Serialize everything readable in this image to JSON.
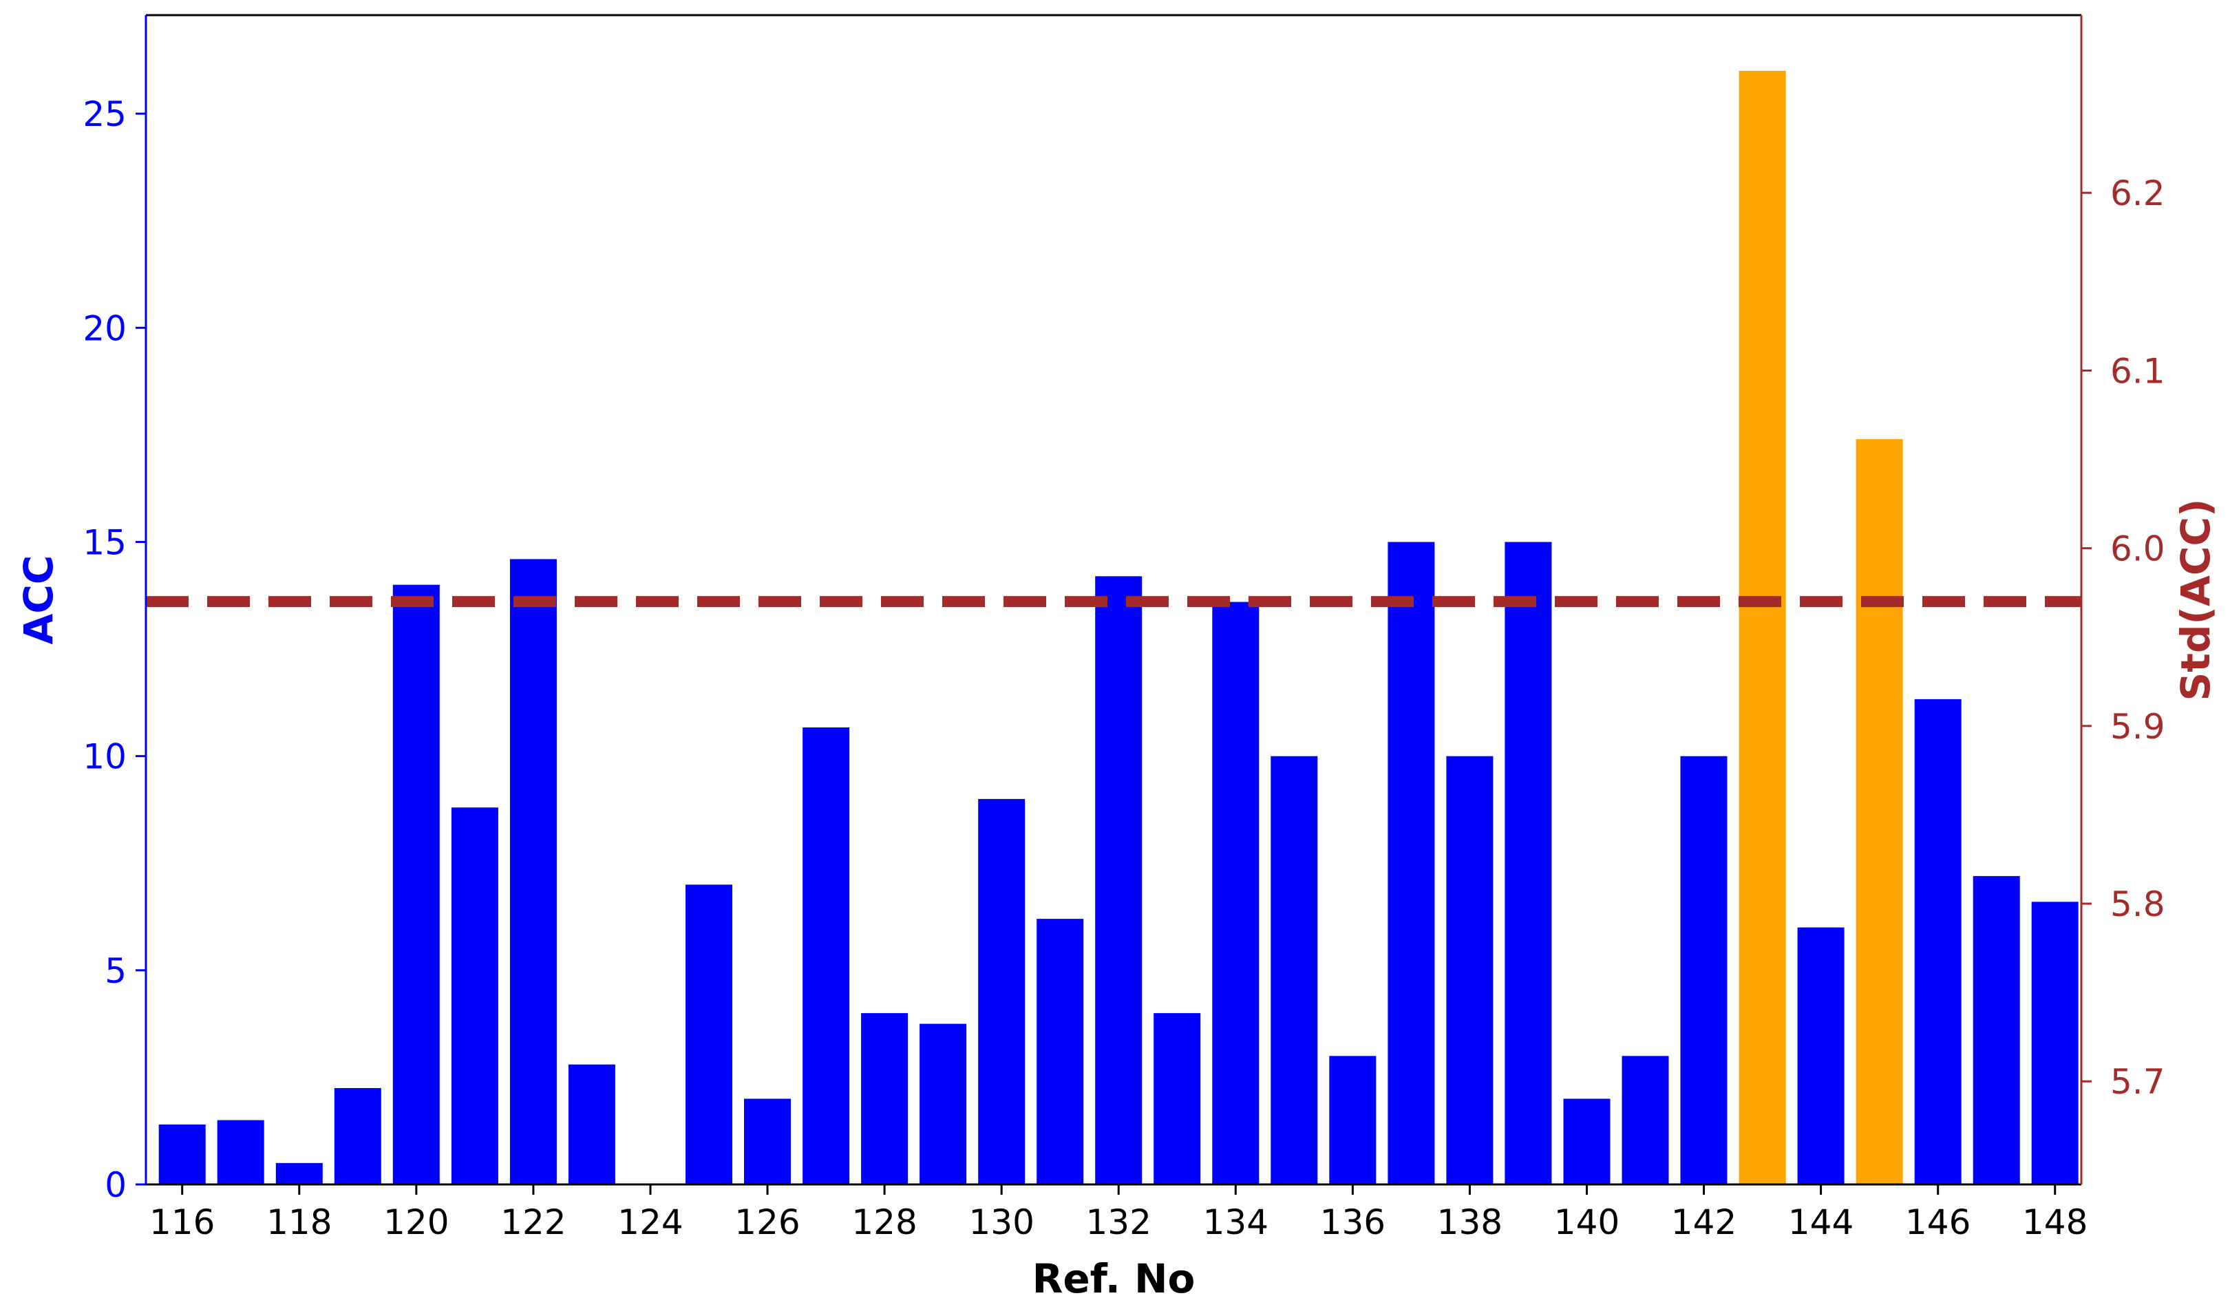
{
  "chart_data": {
    "type": "bar",
    "xlabel": "Ref. No",
    "ylabel_left": "ACC",
    "ylabel_right": "Std(ACC)",
    "left_axis": {
      "ylim": [
        0,
        27.3
      ],
      "ticks": [
        0,
        5,
        10,
        15,
        20,
        25
      ]
    },
    "right_axis": {
      "ylim": [
        5.642,
        6.3
      ],
      "ticks": [
        "5.7",
        "5.8",
        "5.9",
        "6.0",
        "6.1",
        "6.2"
      ]
    },
    "x_ticks": [
      "116",
      "118",
      "120",
      "122",
      "124",
      "126",
      "128",
      "130",
      "132",
      "134",
      "136",
      "138",
      "140",
      "142",
      "144",
      "146",
      "148"
    ],
    "categories": [
      116,
      117,
      118,
      119,
      120,
      121,
      122,
      123,
      124,
      125,
      126,
      127,
      128,
      129,
      130,
      131,
      132,
      133,
      134,
      135,
      136,
      137,
      138,
      139,
      140,
      141,
      142,
      143,
      144,
      145,
      146,
      147,
      148
    ],
    "values": [
      1.4,
      1.5,
      0.5,
      2.25,
      14.0,
      8.8,
      14.6,
      2.8,
      0.0,
      7.0,
      2.0,
      10.67,
      4.0,
      3.75,
      9.0,
      6.2,
      14.2,
      4.0,
      13.6,
      10.0,
      3.0,
      15.0,
      10.0,
      15.0,
      2.0,
      3.0,
      10.0,
      26.0,
      6.0,
      17.4,
      11.33,
      7.2,
      6.6
    ],
    "highlighted": [
      143,
      145
    ],
    "reference_line": {
      "axis": "right",
      "value": 5.97,
      "style": "dashed"
    },
    "grid": false
  },
  "colors": {
    "bar": "#0000ff",
    "bar_highlight": "#ffa500",
    "right_axis": "#a52a2a",
    "left_axis": "#0000ff",
    "text": "#000000"
  }
}
